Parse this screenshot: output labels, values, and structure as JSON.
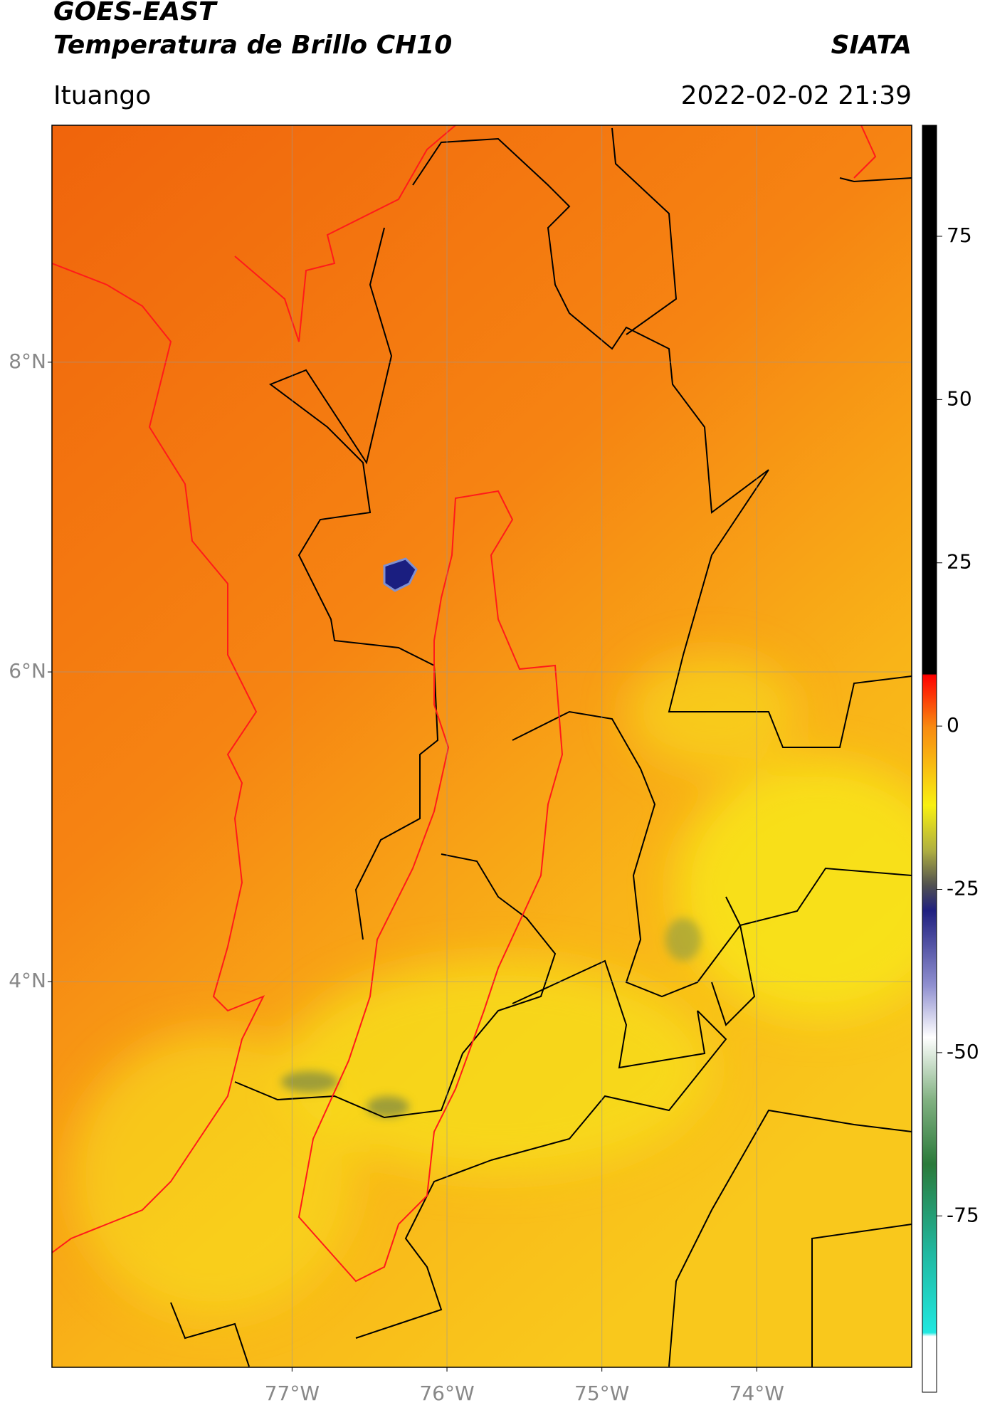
{
  "header": {
    "title": "GOES-EAST",
    "subtitle": "Temperatura de Brillo CH10",
    "brand": "SIATA",
    "location": "Ituango",
    "datetime": "2022-02-02 21:39"
  },
  "chart_data": {
    "type": "map",
    "xlim": [
      -78.55,
      -73.0
    ],
    "ylim": [
      1.51,
      9.53
    ],
    "xticks": [
      {
        "value": -77,
        "label": "77°W"
      },
      {
        "value": -76,
        "label": "76°W"
      },
      {
        "value": -75,
        "label": "75°W"
      },
      {
        "value": -74,
        "label": "74°W"
      }
    ],
    "yticks": [
      {
        "value": 8,
        "label": "8°N"
      },
      {
        "value": 6,
        "label": "6°N"
      },
      {
        "value": 4,
        "label": "4°N"
      }
    ],
    "grid": true,
    "colorbar": {
      "lim": [
        -102,
        92
      ],
      "ticks": [
        75,
        50,
        25,
        0,
        -25,
        -50,
        -75
      ]
    }
  }
}
